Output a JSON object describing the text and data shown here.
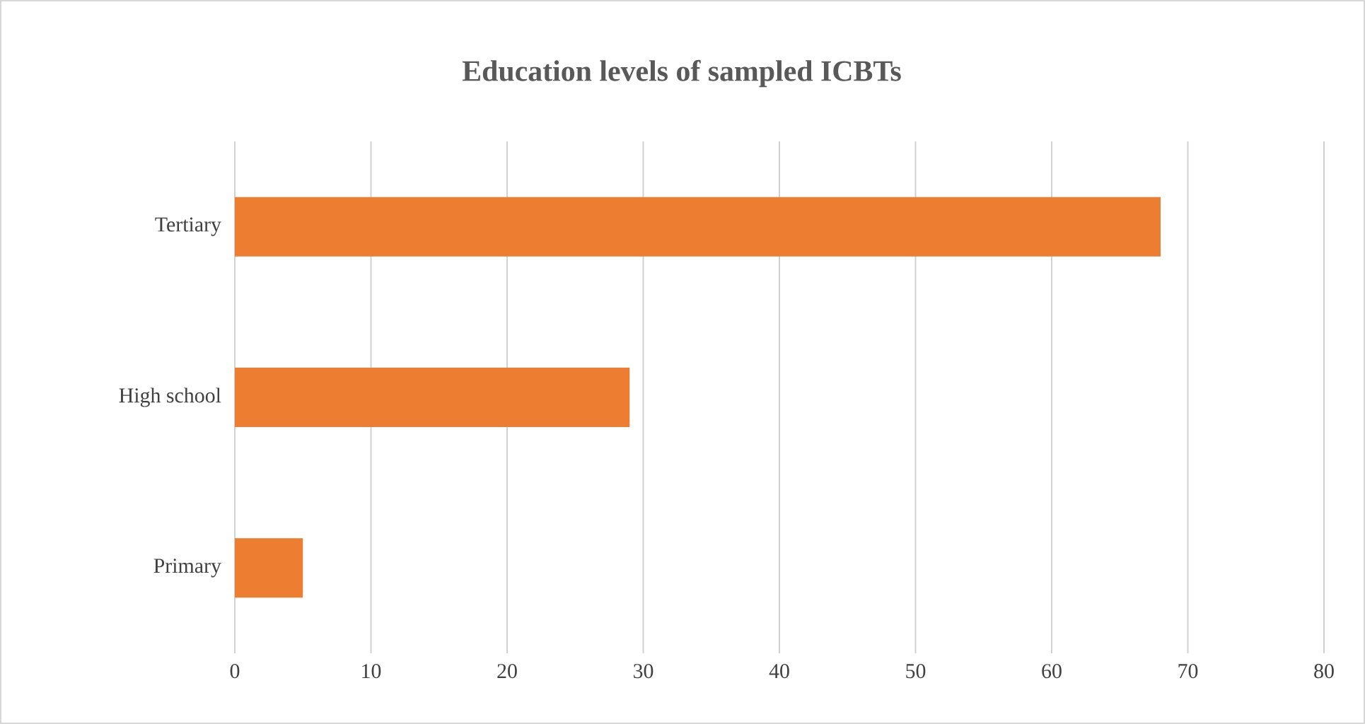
{
  "chart_data": {
    "type": "bar",
    "orientation": "horizontal",
    "title": "Education levels of sampled ICBTs",
    "categories": [
      "Tertiary",
      "High school",
      "Primary"
    ],
    "values": [
      68,
      29,
      5
    ],
    "color": "#ed7d31",
    "xlim": [
      0,
      80
    ],
    "xticks": [
      0,
      10,
      20,
      30,
      40,
      50,
      60,
      70,
      80
    ],
    "grid": "x"
  }
}
